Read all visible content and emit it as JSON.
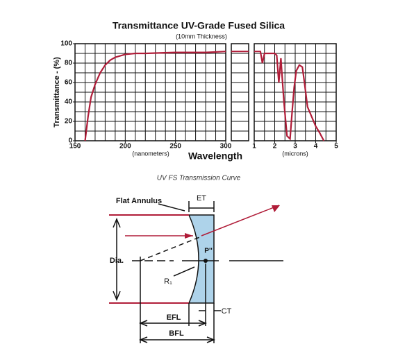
{
  "chart_data": [
    {
      "type": "line",
      "title": "Transmittance UV-Grade Fused Silica",
      "subtitle": "(10mm Thickness)",
      "y_label": "Transmittance - (%)",
      "x_label": "Wavelength",
      "x_unit": "(nanometers)",
      "x": [
        160,
        163,
        166,
        170,
        175,
        180,
        185,
        190,
        200,
        210,
        220,
        250,
        280,
        300
      ],
      "series": [
        {
          "color": "#b01c38",
          "values": [
            0,
            25,
            45,
            58,
            70,
            78,
            83,
            86,
            89,
            90,
            90,
            91,
            91,
            92
          ]
        }
      ],
      "xlim": [
        150,
        300
      ],
      "xticks": [
        150,
        200,
        250,
        300
      ],
      "xgrid": [
        150,
        160,
        170,
        180,
        190,
        200,
        210,
        220,
        230,
        240,
        250,
        260,
        270,
        280,
        290,
        300
      ],
      "ylim": [
        0,
        100
      ],
      "yticks": [
        0,
        20,
        40,
        60,
        80,
        100
      ],
      "ygrid": [
        0,
        10,
        20,
        30,
        40,
        50,
        60,
        70,
        80,
        90,
        100
      ]
    },
    {
      "type": "line",
      "x_unit": "(microns)",
      "x": [
        1.0,
        1.3,
        1.4,
        1.5,
        2.0,
        2.1,
        2.2,
        2.3,
        2.35,
        2.45,
        2.6,
        2.75,
        2.85,
        2.95,
        3.05,
        3.2,
        3.35,
        3.45,
        3.6,
        3.8,
        4.0,
        4.2,
        4.4
      ],
      "series": [
        {
          "color": "#b01c38",
          "values": [
            92,
            92,
            80,
            90,
            90,
            88,
            60,
            85,
            70,
            40,
            5,
            2,
            30,
            55,
            72,
            78,
            76,
            60,
            35,
            25,
            15,
            8,
            0
          ]
        }
      ],
      "xlim": [
        1,
        5
      ],
      "xticks": [
        1,
        2,
        3,
        4,
        5
      ],
      "xgrid": [
        1,
        1.5,
        2,
        2.5,
        3,
        3.5,
        4,
        4.5,
        5
      ],
      "ylim": [
        0,
        100
      ],
      "ygrid": [
        0,
        10,
        20,
        30,
        40,
        50,
        60,
        70,
        80,
        90,
        100
      ]
    }
  ],
  "caption": "UV FS Transmission Curve",
  "diagram": {
    "flat_annulus": "Flat Annulus",
    "et": "ET",
    "p": "P''",
    "dia": "Dia.",
    "r1": "R₁",
    "ct": "CT",
    "efl": "EFL",
    "bfl": "BFL"
  }
}
